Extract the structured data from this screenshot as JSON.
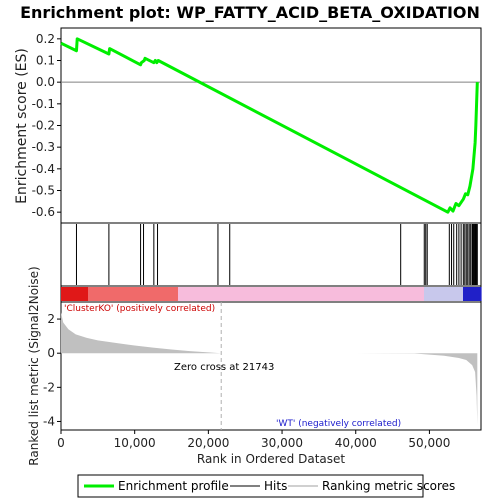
{
  "title": "Enrichment plot: WP_FATTY_ACID_BETA_OXIDATION",
  "colors": {
    "enrichment_line": "#00ee00",
    "hits": "#000000",
    "metric_fill": "#c0c0c0",
    "pos_label": "#cc0000",
    "neg_label": "#1a1acc",
    "zero_line": "#808080"
  },
  "chart_data": [
    {
      "type": "line",
      "panel": "enrichment",
      "ylabel": "Enrichment score (ES)",
      "xlim": [
        0,
        57000
      ],
      "ylim": [
        -0.65,
        0.25
      ],
      "yticks": [
        0.2,
        0.1,
        0.0,
        -0.1,
        -0.2,
        -0.3,
        -0.4,
        -0.5,
        -0.6
      ],
      "ytick_labels": [
        "0.2",
        "0.1",
        "0.0",
        "-0.1",
        "-0.2",
        "-0.3",
        "-0.4",
        "-0.5",
        "-0.6"
      ],
      "grid": false,
      "series": [
        {
          "x": [
            0,
            2100,
            2200,
            6500,
            6600,
            10800,
            10900,
            11300,
            11400,
            12600,
            12800,
            13000,
            13200,
            52500,
            52800,
            53200,
            53600,
            54000,
            54400,
            54600,
            54900,
            55200,
            55500,
            55700,
            55900,
            56000,
            56100,
            56200,
            56300,
            56400,
            56500
          ],
          "y": [
            0.18,
            0.145,
            0.2,
            0.13,
            0.155,
            0.08,
            0.09,
            0.1,
            0.11,
            0.09,
            0.1,
            0.09,
            0.1,
            -0.6,
            -0.58,
            -0.595,
            -0.56,
            -0.57,
            -0.55,
            -0.54,
            -0.515,
            -0.52,
            -0.48,
            -0.44,
            -0.4,
            -0.36,
            -0.32,
            -0.28,
            -0.2,
            -0.1,
            0.0
          ]
        }
      ]
    },
    {
      "type": "scatter",
      "panel": "hits",
      "hits_x": [
        2100,
        6500,
        10800,
        11200,
        12600,
        13100,
        21300,
        22900,
        46100,
        49300,
        49500,
        49700,
        52700,
        53000,
        53300,
        53700,
        54000,
        54300,
        54600,
        54800,
        55000,
        55200,
        55400,
        55600,
        55800,
        55900,
        56000,
        56100,
        56200,
        56300,
        56400,
        56500
      ]
    },
    {
      "type": "area",
      "panel": "metric",
      "ylabel": "Ranked list metric (Signal2Noise)",
      "xlabel": "Rank in Ordered Dataset",
      "xlim": [
        0,
        57000
      ],
      "ylim": [
        -4.5,
        3.0
      ],
      "yticks": [
        2,
        0,
        -2,
        -4
      ],
      "ytick_labels": [
        "2",
        "0",
        "-2",
        "-4"
      ],
      "xticks": [
        0,
        10000,
        20000,
        30000,
        40000,
        50000
      ],
      "xtick_labels": [
        "0",
        "10,000",
        "20,000",
        "30,000",
        "40,000",
        "50,000"
      ],
      "x": [
        0,
        300,
        1000,
        2000,
        3500,
        5000,
        7500,
        10000,
        12500,
        15000,
        17500,
        20000,
        21743,
        30000,
        40000,
        48000,
        50000,
        52000,
        54000,
        55000,
        55800,
        56200,
        56400,
        56500
      ],
      "values": [
        2.4,
        1.8,
        1.4,
        1.1,
        0.9,
        0.75,
        0.6,
        0.45,
        0.33,
        0.22,
        0.12,
        0.05,
        0.0,
        0.0,
        0.0,
        -0.02,
        -0.08,
        -0.15,
        -0.28,
        -0.4,
        -0.7,
        -1.1,
        -2.5,
        -4.2
      ]
    }
  ],
  "annotations": {
    "pos_label": "'ClusterKO' (positively correlated)",
    "neg_label": "'WT' (negatively correlated)",
    "zero_cross": "Zero cross at 21743",
    "zero_cross_x": 21743
  },
  "legend": {
    "items": [
      {
        "label": "Enrichment profile",
        "symbol": "line-green"
      },
      {
        "label": "Hits",
        "symbol": "line-dark"
      },
      {
        "label": "Ranking metric scores",
        "symbol": "line-light"
      }
    ]
  }
}
